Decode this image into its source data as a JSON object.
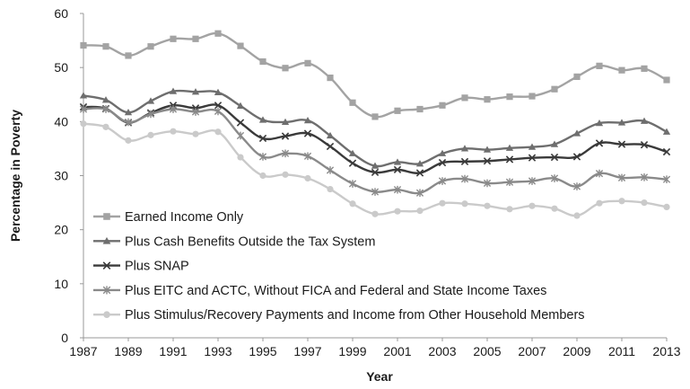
{
  "chart_data": {
    "type": "line",
    "title": "",
    "xlabel": "Year",
    "ylabel": "Percentage in Poverty",
    "x": [
      1987,
      1988,
      1989,
      1990,
      1991,
      1992,
      1993,
      1994,
      1995,
      1996,
      1997,
      1998,
      1999,
      2000,
      2001,
      2002,
      2003,
      2004,
      2005,
      2006,
      2007,
      2008,
      2009,
      2010,
      2011,
      2012,
      2013
    ],
    "xticks": [
      "1987",
      "1989",
      "1991",
      "1993",
      "1995",
      "1997",
      "1999",
      "2001",
      "2003",
      "2005",
      "2007",
      "2009",
      "2011",
      "2013"
    ],
    "yticks": [
      "0",
      "10",
      "20",
      "30",
      "40",
      "50",
      "60"
    ],
    "ylim": [
      0,
      60
    ],
    "grid": false,
    "legend_position": "inside-bottom-left",
    "series": [
      {
        "name": "Earned Income Only",
        "color": "#a3a3a3",
        "marker": "square",
        "values": [
          54.1,
          53.9,
          52.2,
          53.9,
          55.3,
          55.3,
          56.3,
          54.0,
          51.1,
          49.9,
          50.8,
          48.1,
          43.5,
          40.9,
          42.0,
          42.3,
          43.0,
          44.4,
          44.1,
          44.6,
          44.7,
          46.0,
          48.3,
          50.3,
          49.5,
          49.8,
          47.7
        ]
      },
      {
        "name": "Plus Cash Benefits Outside the Tax System",
        "color": "#6e6e6e",
        "marker": "triangle",
        "values": [
          44.8,
          44.0,
          41.7,
          43.8,
          45.6,
          45.5,
          45.4,
          42.9,
          40.3,
          39.9,
          40.2,
          37.4,
          34.1,
          31.8,
          32.5,
          32.2,
          34.1,
          35.0,
          34.8,
          35.1,
          35.3,
          35.8,
          37.8,
          39.7,
          39.8,
          40.1,
          38.1
        ]
      },
      {
        "name": "Plus SNAP",
        "color": "#3a3a3a",
        "marker": "x",
        "values": [
          42.7,
          42.4,
          39.8,
          41.6,
          43.0,
          42.5,
          43.0,
          39.8,
          36.9,
          37.3,
          37.8,
          35.4,
          32.3,
          30.6,
          31.1,
          30.5,
          32.4,
          32.6,
          32.7,
          33.0,
          33.3,
          33.4,
          33.5,
          36.0,
          35.8,
          35.7,
          34.4
        ]
      },
      {
        "name": "Plus EITC and ACTC, Without FICA and Federal and State Income Taxes",
        "color": "#8a8a8a",
        "marker": "star",
        "values": [
          42.3,
          42.3,
          39.9,
          41.4,
          42.3,
          41.8,
          41.9,
          37.4,
          33.5,
          34.1,
          33.6,
          31.0,
          28.5,
          27.0,
          27.4,
          26.8,
          29.0,
          29.4,
          28.6,
          28.8,
          29.0,
          29.5,
          28.0,
          30.4,
          29.6,
          29.7,
          29.3
        ]
      },
      {
        "name": "Plus Stimulus/Recovery Payments and Income from Other Household Members",
        "color": "#cacaca",
        "marker": "circle",
        "values": [
          39.6,
          39.0,
          36.5,
          37.5,
          38.2,
          37.7,
          38.1,
          33.4,
          30.0,
          30.2,
          29.5,
          27.5,
          24.8,
          22.9,
          23.4,
          23.5,
          24.9,
          24.8,
          24.4,
          23.8,
          24.4,
          23.9,
          22.6,
          24.9,
          25.3,
          25.0,
          24.2
        ]
      }
    ]
  }
}
